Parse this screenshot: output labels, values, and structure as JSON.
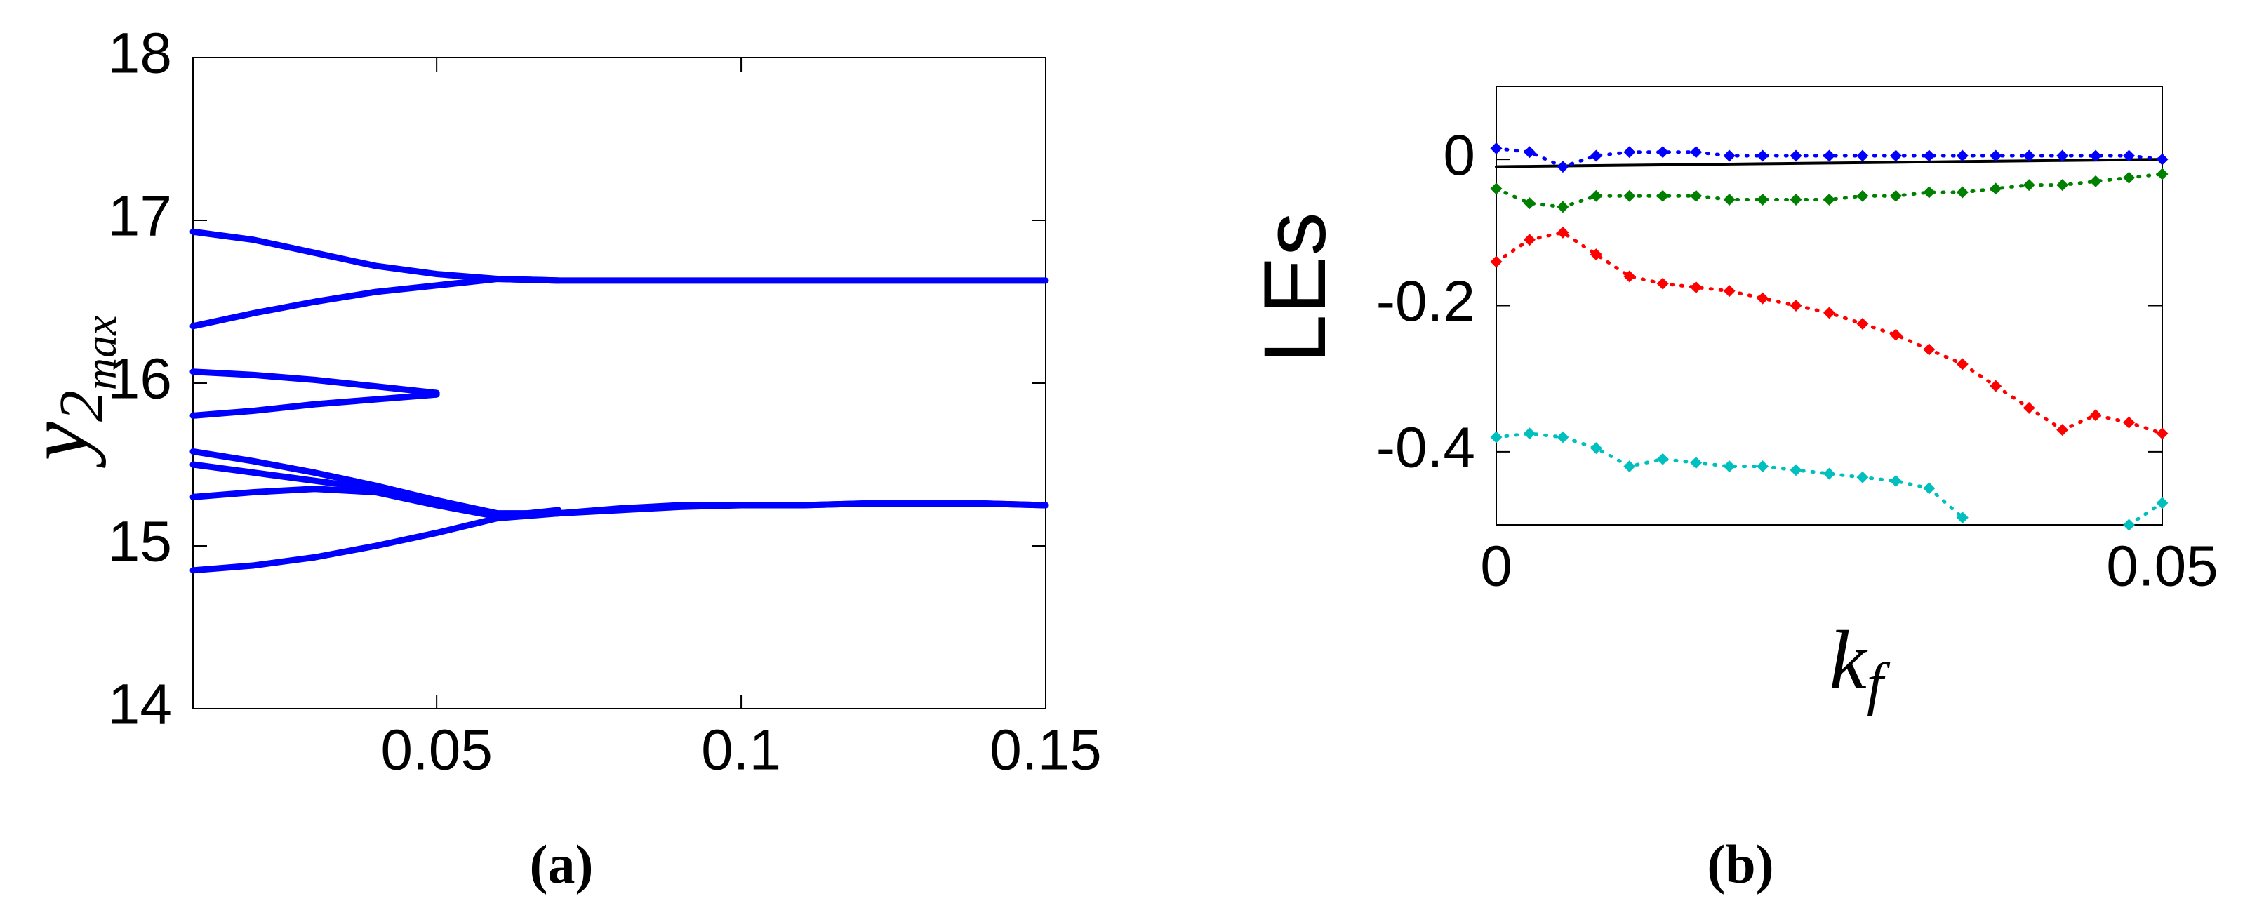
{
  "chart_data": [
    {
      "type": "line",
      "caption": "(a)",
      "ylabel": [
        "y",
        "2",
        "max"
      ],
      "markers": false,
      "x": [
        0.01,
        0.02,
        0.03,
        0.04,
        0.05,
        0.06,
        0.07,
        0.08,
        0.09,
        0.1,
        0.11,
        0.12,
        0.13,
        0.14,
        0.15
      ],
      "xlim": [
        0.01,
        0.15
      ],
      "xticks": [
        0.05,
        0.1,
        0.15
      ],
      "ylim": [
        14,
        18
      ],
      "yticks": [
        14,
        15,
        16,
        17,
        18
      ],
      "series": [
        {
          "color": "#0000ff",
          "values": [
            16.93,
            16.88,
            16.8,
            16.72,
            16.67,
            16.64,
            16.63,
            16.63,
            16.63,
            16.63,
            16.63,
            16.63,
            16.63,
            16.63,
            16.63
          ]
        },
        {
          "color": "#0000ff",
          "values": [
            16.35,
            16.43,
            16.5,
            16.56,
            16.6,
            16.64,
            16.63,
            null,
            null,
            null,
            null,
            null,
            null,
            null,
            null
          ]
        },
        {
          "color": "#0000ff",
          "values": [
            16.07,
            16.05,
            16.02,
            15.98,
            15.94,
            null,
            null,
            null,
            null,
            null,
            null,
            null,
            null,
            null,
            null
          ]
        },
        {
          "color": "#0000ff",
          "values": [
            15.8,
            15.83,
            15.87,
            15.9,
            15.93,
            null,
            null,
            null,
            null,
            null,
            null,
            null,
            null,
            null,
            null
          ]
        },
        {
          "color": "#0000ff",
          "values": [
            15.58,
            15.52,
            15.45,
            15.37,
            15.28,
            15.2,
            15.2,
            15.23,
            15.25,
            15.25,
            15.25,
            15.26,
            15.26,
            15.26,
            15.25
          ]
        },
        {
          "color": "#0000ff",
          "values": [
            15.5,
            15.45,
            15.4,
            15.35,
            15.27,
            15.18,
            15.22,
            null,
            null,
            null,
            null,
            null,
            null,
            null,
            null
          ]
        },
        {
          "color": "#0000ff",
          "values": [
            15.3,
            15.33,
            15.35,
            15.33,
            15.25,
            15.18,
            15.2,
            null,
            null,
            null,
            null,
            null,
            null,
            null,
            null
          ]
        },
        {
          "color": "#0000ff",
          "values": [
            14.85,
            14.88,
            14.93,
            15.0,
            15.08,
            15.17,
            15.2,
            15.22,
            15.24,
            15.25,
            15.25,
            15.26,
            15.26,
            15.26,
            15.25
          ]
        }
      ]
    },
    {
      "type": "line",
      "caption": "(b)",
      "ylabel": "LEs",
      "xlabel": [
        "k",
        "f"
      ],
      "markers": true,
      "x": [
        0,
        0.0025,
        0.005,
        0.0075,
        0.01,
        0.0125,
        0.015,
        0.0175,
        0.02,
        0.0225,
        0.025,
        0.0275,
        0.03,
        0.0325,
        0.035,
        0.0375,
        0.04,
        0.0425,
        0.045,
        0.0475,
        0.05
      ],
      "xlim": [
        0,
        0.05
      ],
      "xticks": [
        0,
        0.05
      ],
      "ylim": [
        -0.5,
        0.1
      ],
      "yticks": [
        -0.4,
        -0.2,
        0
      ],
      "series": [
        {
          "color": "#000000",
          "marker": false,
          "values": [
            -0.01,
            -0.0095,
            -0.009,
            -0.0085,
            -0.008,
            -0.0075,
            -0.007,
            -0.0065,
            -0.006,
            -0.0055,
            -0.005,
            -0.0045,
            -0.004,
            -0.0035,
            -0.003,
            -0.0025,
            -0.002,
            -0.0015,
            -0.001,
            -0.0005,
            0
          ]
        },
        {
          "color": "#0000ff",
          "marker": true,
          "values": [
            0.015,
            0.01,
            -0.01,
            0.005,
            0.01,
            0.01,
            0.01,
            0.005,
            0.005,
            0.005,
            0.005,
            0.005,
            0.005,
            0.005,
            0.005,
            0.005,
            0.005,
            0.005,
            0.005,
            0.005,
            0
          ]
        },
        {
          "color": "#008000",
          "marker": true,
          "values": [
            -0.04,
            -0.06,
            -0.065,
            -0.05,
            -0.05,
            -0.05,
            -0.05,
            -0.055,
            -0.055,
            -0.055,
            -0.055,
            -0.05,
            -0.05,
            -0.045,
            -0.045,
            -0.04,
            -0.035,
            -0.035,
            -0.03,
            -0.025,
            -0.02
          ]
        },
        {
          "color": "#ff0000",
          "marker": true,
          "values": [
            -0.14,
            -0.11,
            -0.1,
            -0.13,
            -0.16,
            -0.17,
            -0.175,
            -0.18,
            -0.19,
            -0.2,
            -0.21,
            -0.225,
            -0.24,
            -0.26,
            -0.28,
            -0.31,
            -0.34,
            -0.37,
            -0.35,
            -0.36,
            -0.375
          ]
        },
        {
          "color": "#00bfbf",
          "marker": true,
          "values": [
            -0.38,
            -0.375,
            -0.38,
            -0.395,
            -0.42,
            -0.41,
            -0.415,
            -0.42,
            -0.42,
            -0.425,
            -0.43,
            -0.435,
            -0.44,
            -0.45,
            -0.49,
            null,
            null,
            null,
            null,
            -0.5,
            -0.47
          ]
        }
      ]
    }
  ]
}
